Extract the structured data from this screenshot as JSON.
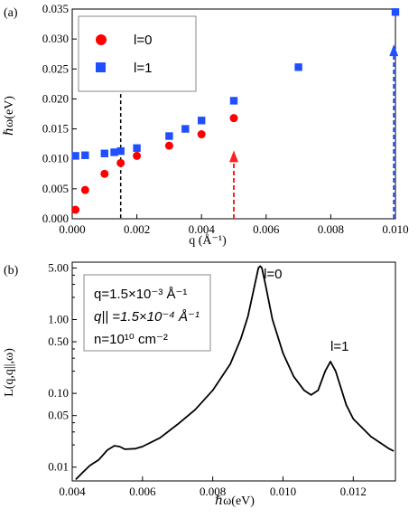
{
  "chart_data": [
    {
      "panel_label": "(a)",
      "type": "scatter",
      "xlabel": "q (Å⁻¹)",
      "ylabel": "ℏω(eV)",
      "xlim": [
        0,
        0.01
      ],
      "ylim": [
        0,
        0.035
      ],
      "x_ticks": [
        "0.000",
        "0.002",
        "0.004",
        "0.006",
        "0.008",
        "0.010"
      ],
      "y_ticks": [
        "0.000",
        "0.005",
        "0.010",
        "0.015",
        "0.020",
        "0.025",
        "0.030",
        "0.035"
      ],
      "legend_position": "top-left",
      "series": [
        {
          "name": "l=0",
          "color": "#ff0000",
          "marker": "circle",
          "points": [
            [
              0.0001,
              0.0015
            ],
            [
              0.0004,
              0.0048
            ],
            [
              0.001,
              0.0075
            ],
            [
              0.0015,
              0.0093
            ],
            [
              0.002,
              0.0105
            ],
            [
              0.003,
              0.0122
            ],
            [
              0.004,
              0.0141
            ],
            [
              0.005,
              0.0168
            ]
          ]
        },
        {
          "name": "l=1",
          "color": "#1f4fff",
          "marker": "square",
          "points": [
            [
              0.0001,
              0.0105
            ],
            [
              0.0004,
              0.0106
            ],
            [
              0.001,
              0.0109
            ],
            [
              0.0013,
              0.0111
            ],
            [
              0.0015,
              0.0113
            ],
            [
              0.002,
              0.0118
            ],
            [
              0.003,
              0.0138
            ],
            [
              0.0035,
              0.015
            ],
            [
              0.004,
              0.0164
            ],
            [
              0.005,
              0.0197
            ],
            [
              0.007,
              0.0253
            ],
            [
              0.01,
              0.0345
            ]
          ]
        }
      ],
      "vertical_line": {
        "x": 0.0015,
        "color": "#000000",
        "style": "dashed"
      },
      "arrows": [
        {
          "x": 0.005,
          "y_from": 0.0,
          "y_to": 0.0108,
          "color": "#ff2020"
        },
        {
          "x": 0.00995,
          "y_from": 0.0,
          "y_to": 0.0285,
          "color": "#2050ff"
        }
      ]
    },
    {
      "panel_label": "(b)",
      "type": "line",
      "xlabel": "ℏω(eV)",
      "ylabel": "L(q,q||,ω)",
      "xlim": [
        0.004,
        0.0132
      ],
      "ylim_log": [
        0.0065,
        6.0
      ],
      "y_scale": "log",
      "x_ticks": [
        "0.004",
        "0.006",
        "0.008",
        "0.010",
        "0.012"
      ],
      "y_ticks": [
        "0.01",
        "0.05",
        "0.10",
        "0.50",
        "1.00",
        "5.00"
      ],
      "info_lines": [
        "q=1.5×10⁻³ Å⁻¹",
        "q|| =1.5×10⁻⁴ Å⁻¹",
        "n=10¹⁰ cm⁻²"
      ],
      "peak_labels": [
        {
          "text": "l=0",
          "x": 0.00945,
          "y": 3.6
        },
        {
          "text": "l=1",
          "x": 0.01135,
          "y": 0.38
        }
      ],
      "series": [
        {
          "color": "#000000",
          "points": [
            [
              0.0041,
              0.0068
            ],
            [
              0.0043,
              0.0085
            ],
            [
              0.0045,
              0.0105
            ],
            [
              0.00475,
              0.0125
            ],
            [
              0.005,
              0.017
            ],
            [
              0.0052,
              0.0195
            ],
            [
              0.00535,
              0.019
            ],
            [
              0.0055,
              0.0175
            ],
            [
              0.0058,
              0.0178
            ],
            [
              0.006,
              0.019
            ],
            [
              0.0065,
              0.025
            ],
            [
              0.007,
              0.038
            ],
            [
              0.0075,
              0.06
            ],
            [
              0.008,
              0.11
            ],
            [
              0.0085,
              0.25
            ],
            [
              0.0088,
              0.55
            ],
            [
              0.009,
              1.1
            ],
            [
              0.0092,
              3.0
            ],
            [
              0.0093,
              5.0
            ],
            [
              0.00935,
              5.3
            ],
            [
              0.0094,
              5.0
            ],
            [
              0.0095,
              3.0
            ],
            [
              0.0097,
              1.0
            ],
            [
              0.01,
              0.35
            ],
            [
              0.0103,
              0.17
            ],
            [
              0.0106,
              0.11
            ],
            [
              0.0108,
              0.095
            ],
            [
              0.011,
              0.11
            ],
            [
              0.0112,
              0.2
            ],
            [
              0.01135,
              0.27
            ],
            [
              0.0115,
              0.2
            ],
            [
              0.0118,
              0.07
            ],
            [
              0.012,
              0.045
            ],
            [
              0.0125,
              0.026
            ],
            [
              0.013,
              0.018
            ],
            [
              0.01315,
              0.0165
            ]
          ]
        }
      ]
    }
  ]
}
